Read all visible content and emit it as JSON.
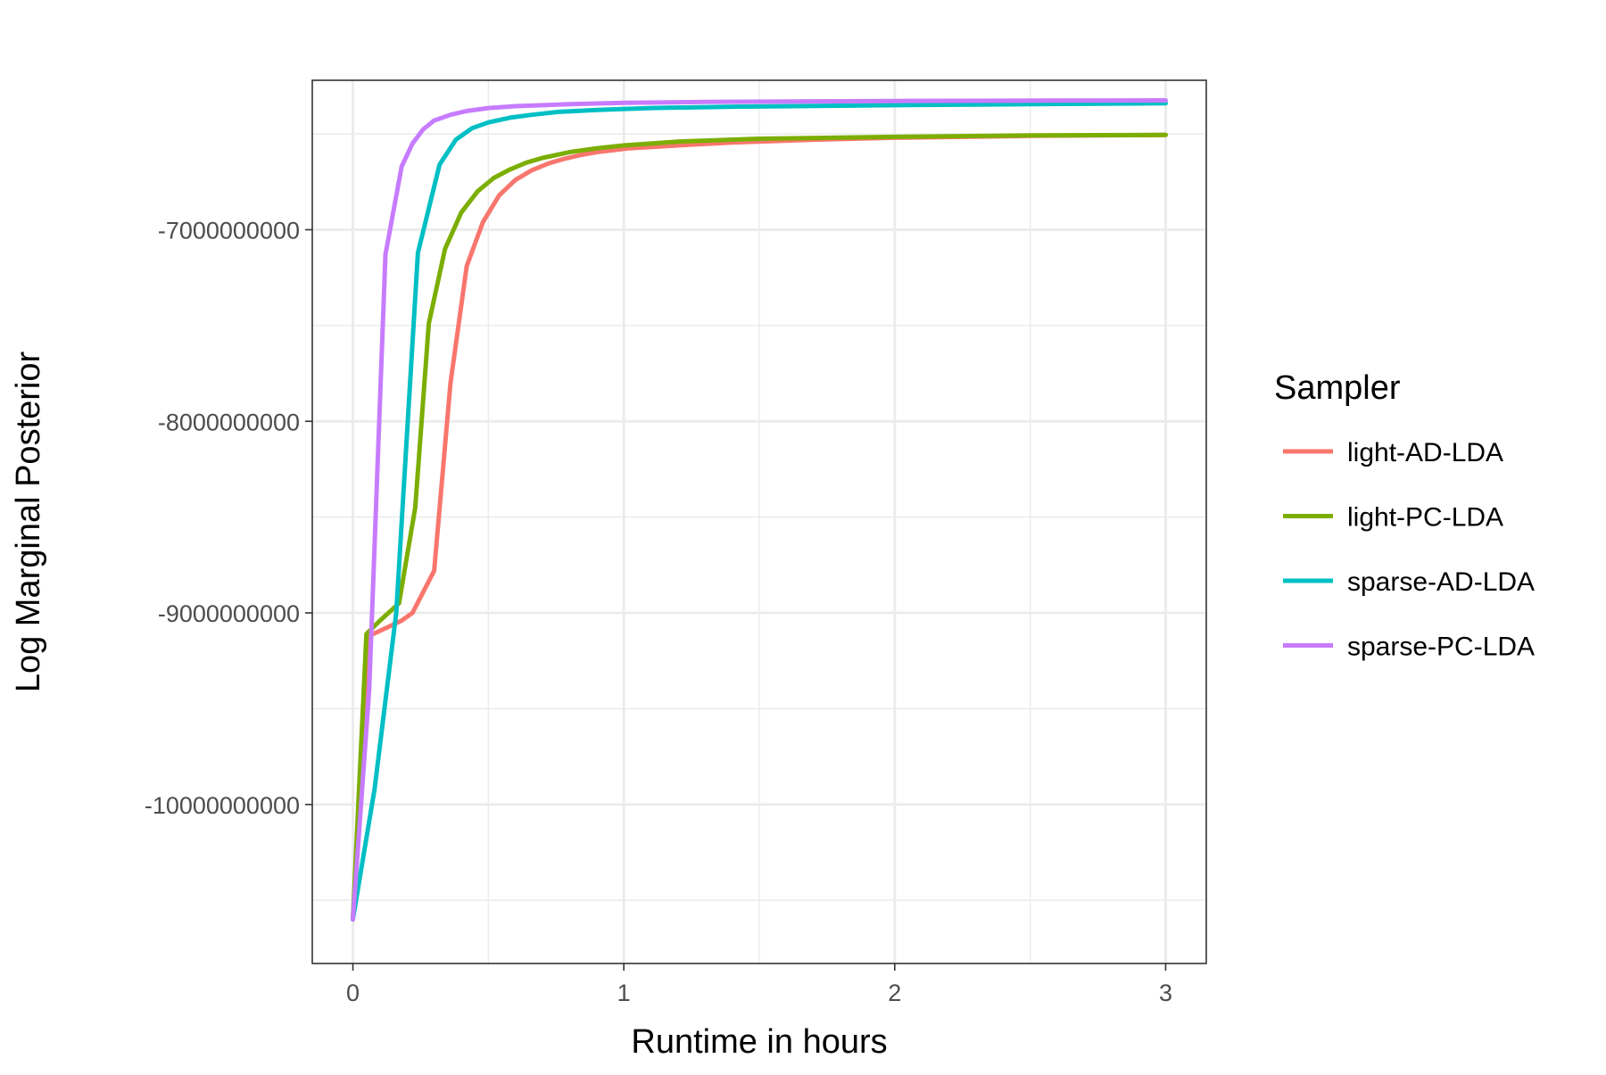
{
  "chart_data": {
    "type": "line",
    "title": "",
    "xlabel": "Runtime in hours",
    "ylabel": "Log Marginal Posterior",
    "xlim": [
      -0.15,
      3.15
    ],
    "ylim": [
      -10830000000,
      -6220000000
    ],
    "x_ticks": [
      0,
      1,
      2,
      3
    ],
    "x_tick_labels": [
      "0",
      "1",
      "2",
      "3"
    ],
    "y_ticks": [
      -10000000000,
      -9000000000,
      -8000000000,
      -7000000000
    ],
    "y_tick_labels": [
      "-10000000000",
      "-9000000000",
      "-8000000000",
      "-7000000000"
    ],
    "grid": true,
    "legend": {
      "title": "Sampler",
      "placement": "right"
    },
    "series": [
      {
        "name": "light-AD-LDA",
        "color": "#F8766D",
        "x": [
          0,
          0.06,
          0.12,
          0.18,
          0.22,
          0.3,
          0.36,
          0.42,
          0.48,
          0.54,
          0.6,
          0.66,
          0.72,
          0.78,
          0.84,
          0.9,
          0.96,
          1.02,
          1.2,
          1.4,
          1.7,
          2.0,
          2.5,
          3.0
        ],
        "y": [
          -10600000000,
          -9120000000,
          -9080000000,
          -9040000000,
          -9000000000,
          -8780000000,
          -7800000000,
          -7190000000,
          -6960000000,
          -6820000000,
          -6740000000,
          -6690000000,
          -6655000000,
          -6630000000,
          -6610000000,
          -6595000000,
          -6585000000,
          -6575000000,
          -6560000000,
          -6545000000,
          -6530000000,
          -6520000000,
          -6510000000,
          -6505000000
        ]
      },
      {
        "name": "light-PC-LDA",
        "color": "#7CAE00",
        "x": [
          0,
          0.05,
          0.1,
          0.17,
          0.23,
          0.28,
          0.34,
          0.4,
          0.46,
          0.52,
          0.58,
          0.64,
          0.7,
          0.8,
          0.9,
          1.0,
          1.2,
          1.5,
          2.0,
          2.5,
          3.0
        ],
        "y": [
          -10600000000,
          -9110000000,
          -9040000000,
          -8950000000,
          -8450000000,
          -7490000000,
          -7100000000,
          -6910000000,
          -6800000000,
          -6730000000,
          -6685000000,
          -6650000000,
          -6625000000,
          -6595000000,
          -6575000000,
          -6560000000,
          -6540000000,
          -6525000000,
          -6515000000,
          -6508000000,
          -6505000000
        ]
      },
      {
        "name": "sparse-AD-LDA",
        "color": "#00BFC4",
        "x": [
          0,
          0.08,
          0.16,
          0.24,
          0.32,
          0.38,
          0.44,
          0.5,
          0.58,
          0.66,
          0.76,
          0.9,
          1.1,
          1.4,
          2.0,
          2.5,
          3.0
        ],
        "y": [
          -10600000000,
          -9920000000,
          -9000000000,
          -7120000000,
          -6660000000,
          -6530000000,
          -6470000000,
          -6440000000,
          -6415000000,
          -6400000000,
          -6385000000,
          -6375000000,
          -6365000000,
          -6358000000,
          -6350000000,
          -6345000000,
          -6340000000
        ]
      },
      {
        "name": "sparse-PC-LDA",
        "color": "#C77CFF",
        "x": [
          0,
          0.06,
          0.12,
          0.18,
          0.22,
          0.26,
          0.3,
          0.36,
          0.42,
          0.5,
          0.6,
          0.8,
          1.0,
          1.3,
          1.7,
          2.0,
          2.5,
          3.0
        ],
        "y": [
          -10600000000,
          -9400000000,
          -7130000000,
          -6670000000,
          -6550000000,
          -6475000000,
          -6430000000,
          -6400000000,
          -6380000000,
          -6365000000,
          -6355000000,
          -6345000000,
          -6338000000,
          -6333000000,
          -6330000000,
          -6328000000,
          -6326000000,
          -6325000000
        ]
      }
    ]
  }
}
